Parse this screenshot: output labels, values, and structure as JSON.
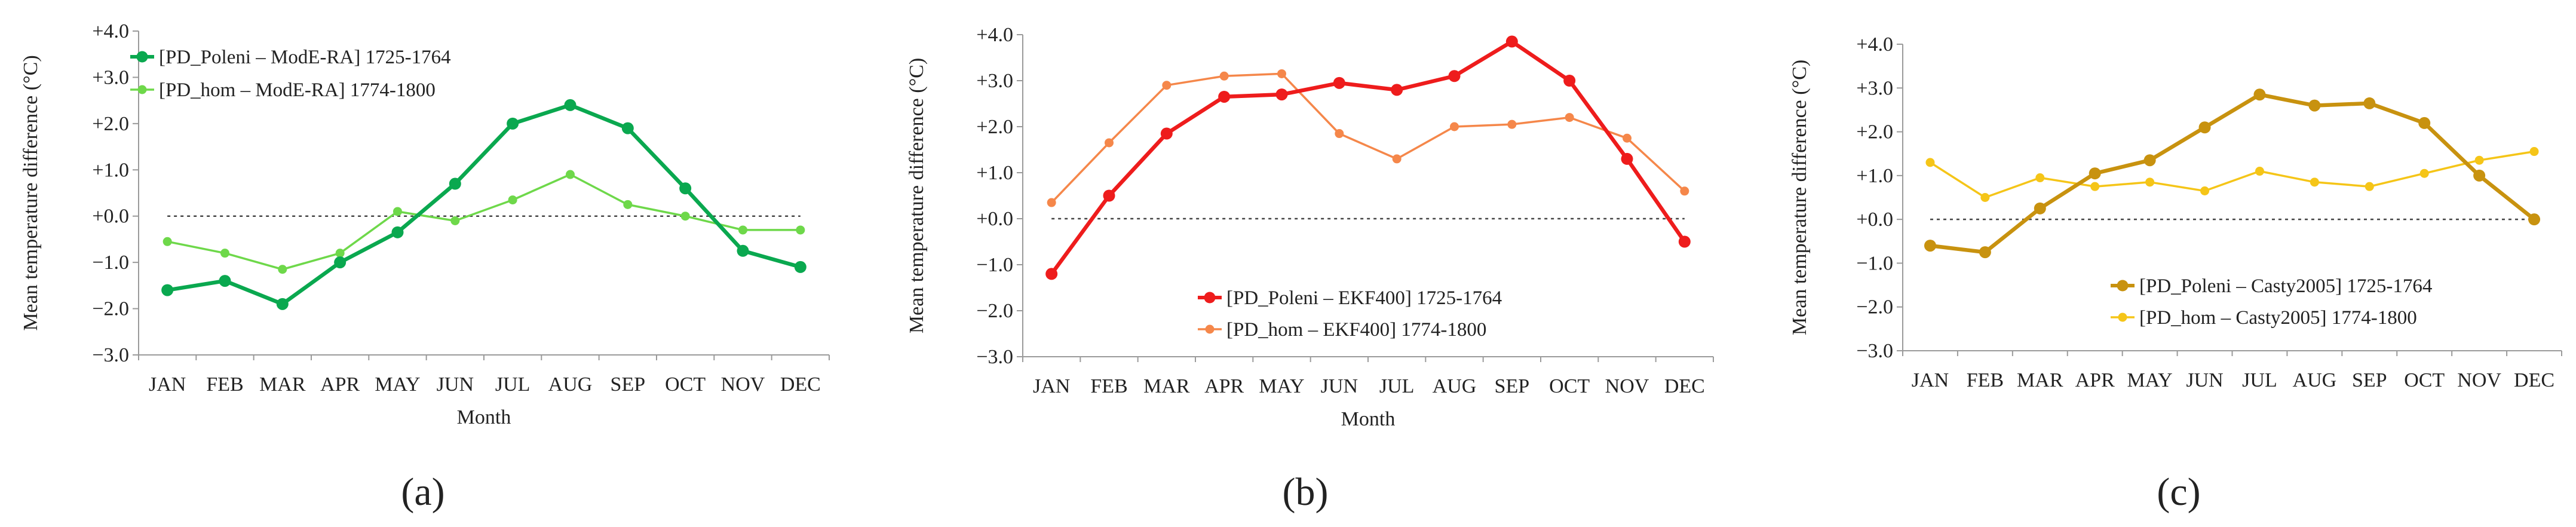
{
  "months": [
    "JAN",
    "FEB",
    "MAR",
    "APR",
    "MAY",
    "JUN",
    "JUL",
    "AUG",
    "SEP",
    "OCT",
    "NOV",
    "DEC"
  ],
  "chart_data": [
    {
      "type": "line",
      "panel_label": "(a)",
      "xlabel": "Month",
      "ylabel": "Mean temperature difference (°C)",
      "ylim": [
        -3,
        4
      ],
      "yticks": [
        "+4.0",
        "+3.0",
        "+2.0",
        "+1.0",
        "+0.0",
        "−1.0",
        "−2.0",
        "−3.0"
      ],
      "legend_position": "top-left",
      "series": [
        {
          "name": "[PD_Poleni – ModE-RA] 1725-1764",
          "color": "#0aa84f",
          "width": "thick",
          "values": [
            -1.6,
            -1.4,
            -1.9,
            -1.0,
            -0.35,
            0.7,
            2.0,
            2.4,
            1.9,
            0.6,
            -0.75,
            -1.1
          ]
        },
        {
          "name": "[PD_hom – ModE-RA] 1774-1800",
          "color": "#6ed84a",
          "width": "thin",
          "values": [
            -0.55,
            -0.8,
            -1.15,
            -0.8,
            0.1,
            -0.1,
            0.35,
            0.9,
            0.25,
            0.0,
            -0.3,
            -0.3
          ]
        }
      ]
    },
    {
      "type": "line",
      "panel_label": "(b)",
      "xlabel": "Month",
      "ylabel": "Mean temperature difference (°C)",
      "ylim": [
        -3,
        4
      ],
      "yticks": [
        "+4.0",
        "+3.0",
        "+2.0",
        "+1.0",
        "+0.0",
        "−1.0",
        "−2.0",
        "−3.0"
      ],
      "legend_position": "bottom-center",
      "series": [
        {
          "name": "[PD_Poleni – EKF400] 1725-1764",
          "color": "#ee1c1c",
          "width": "thick",
          "values": [
            -1.2,
            0.5,
            1.85,
            2.65,
            2.7,
            2.95,
            2.8,
            3.1,
            3.85,
            3.0,
            1.3,
            -0.5
          ]
        },
        {
          "name": "[PD_hom – EKF400] 1774-1800",
          "color": "#f5874a",
          "width": "thin",
          "values": [
            0.35,
            1.65,
            2.9,
            3.1,
            3.15,
            1.85,
            1.3,
            2.0,
            2.05,
            2.2,
            1.75,
            0.6
          ]
        }
      ]
    },
    {
      "type": "line",
      "panel_label": "(c)",
      "xlabel": "",
      "ylabel": "Mean temperature difference (°C)",
      "ylim": [
        -3,
        4
      ],
      "yticks": [
        "+4.0",
        "+3.0",
        "+2.0",
        "+1.0",
        "+0.0",
        "−1.0",
        "−2.0",
        "−3.0"
      ],
      "legend_position": "bottom-center",
      "series": [
        {
          "name": "[PD_Poleni – Casty2005] 1725-1764",
          "color": "#c8920f",
          "width": "thick",
          "values": [
            -0.6,
            -0.75,
            0.25,
            1.05,
            1.35,
            2.1,
            2.85,
            2.6,
            2.65,
            2.2,
            1.0,
            0.0
          ]
        },
        {
          "name": "[PD_hom – Casty2005] 1774-1800",
          "color": "#f5c518",
          "width": "thin",
          "values": [
            1.3,
            0.5,
            0.95,
            0.75,
            0.85,
            0.65,
            1.1,
            0.85,
            0.75,
            1.05,
            1.35,
            1.55
          ]
        }
      ]
    }
  ]
}
